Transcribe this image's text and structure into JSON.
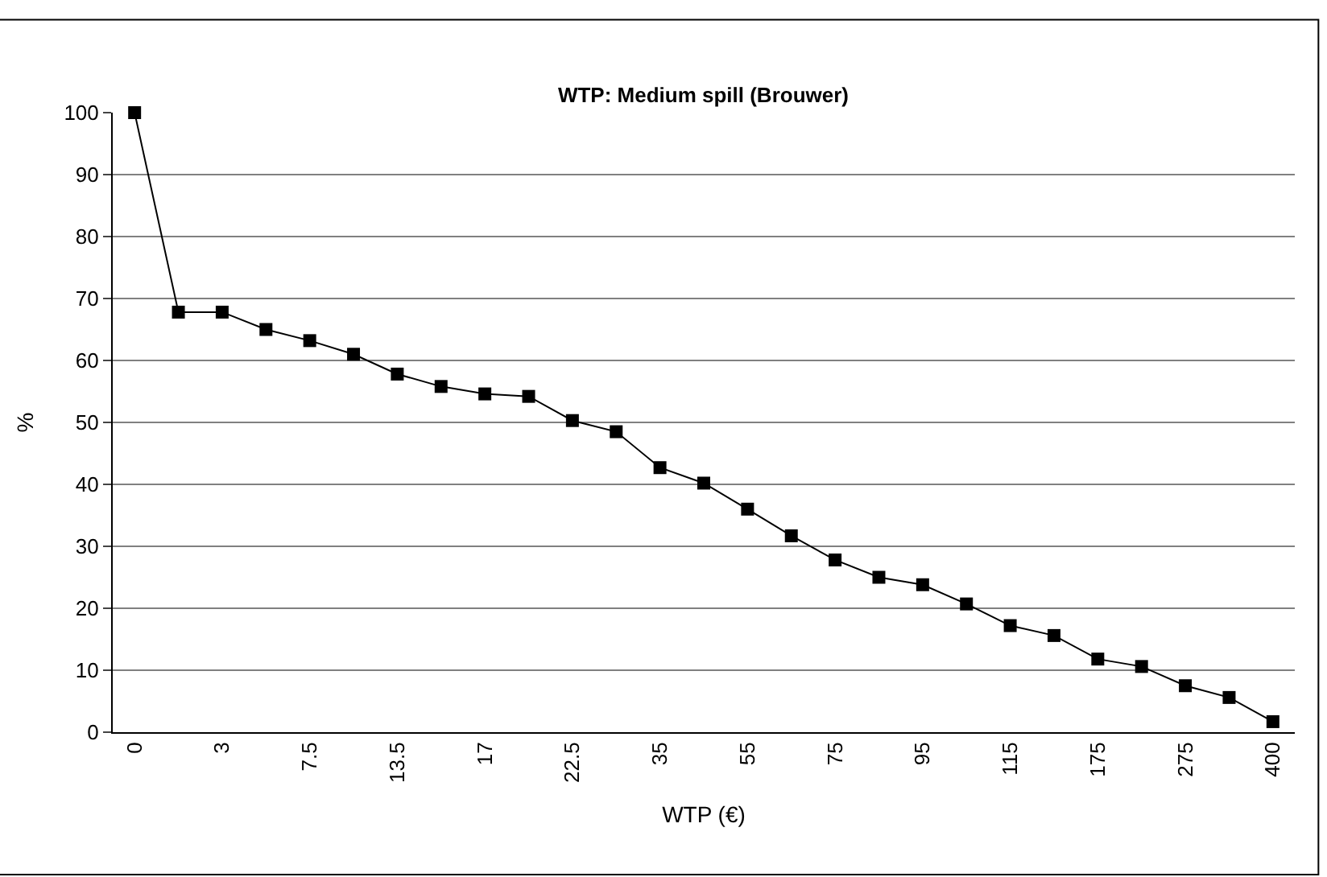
{
  "chart_data": {
    "type": "line",
    "title": "WTP: Medium spill (Brouwer)",
    "xlabel": "WTP (€)",
    "ylabel": "%",
    "categories": [
      "0",
      null,
      "3",
      null,
      "7.5",
      null,
      "13.5",
      null,
      "17",
      null,
      "22.5",
      null,
      "35",
      null,
      "55",
      null,
      "75",
      null,
      "95",
      null,
      "115",
      null,
      "175",
      null,
      "275",
      null,
      "400"
    ],
    "series": [
      {
        "color": "#000000",
        "values": [
          100,
          67.8,
          67.8,
          65,
          63.2,
          61,
          57.8,
          55.8,
          54.6,
          54.2,
          50.3,
          48.5,
          42.7,
          40.2,
          36,
          31.7,
          27.8,
          25,
          23.8,
          20.7,
          17.2,
          15.6,
          11.8,
          10.6,
          7.5,
          5.6,
          1.7
        ]
      }
    ],
    "ylim": [
      0,
      100
    ],
    "yticks": [
      0,
      10,
      20,
      30,
      40,
      50,
      60,
      70,
      80,
      90,
      100
    ],
    "grid": "y",
    "legend": false,
    "marker": "square",
    "line_style": "solid"
  }
}
